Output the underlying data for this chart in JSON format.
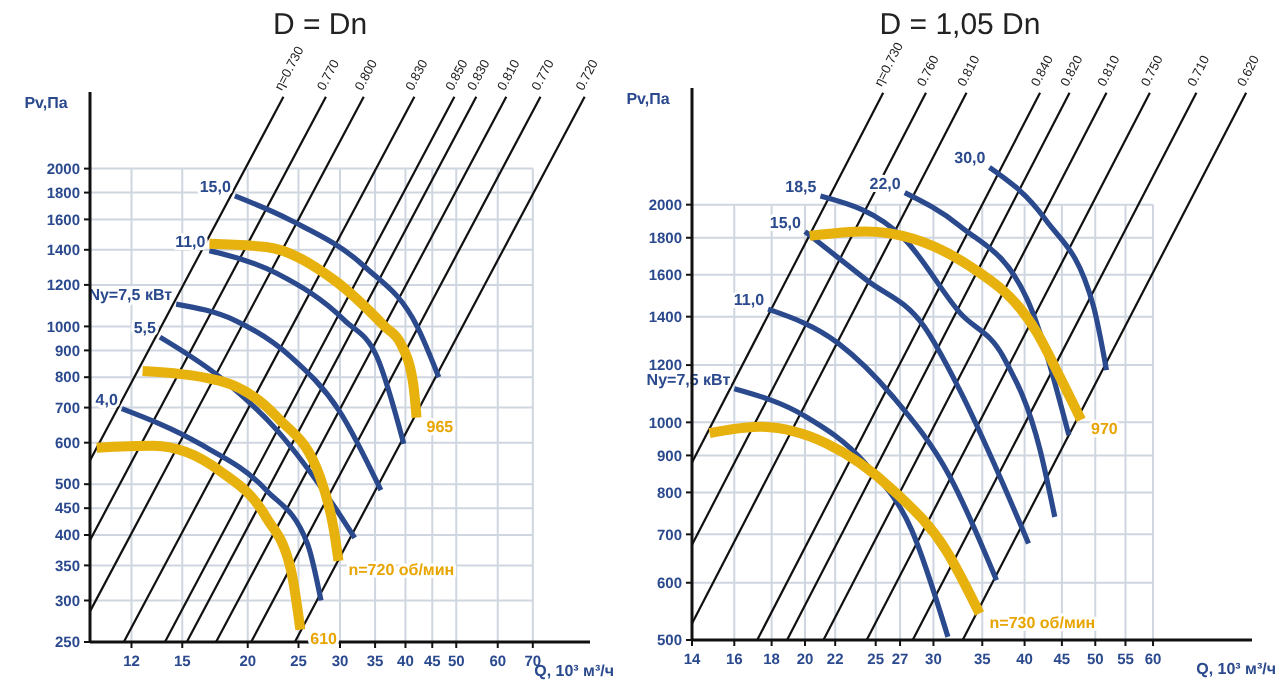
{
  "chart_data": [
    {
      "type": "line",
      "title": "D = Dn",
      "xlabel": "Q, 10³ м³/ч",
      "ylabel": "Pv,Па",
      "log": "xy",
      "grid": true,
      "xlim": [
        10,
        90
      ],
      "ylim": [
        250,
        2800
      ],
      "xticks": [
        12,
        15,
        20,
        25,
        30,
        35,
        40,
        45,
        50,
        60,
        70
      ],
      "yticks": [
        250,
        300,
        350,
        400,
        450,
        500,
        600,
        700,
        800,
        900,
        1000,
        1200,
        1400,
        1600,
        1800,
        2000
      ],
      "series": [
        {
          "name": "η=0.730",
          "color": "#111111",
          "x": [
            10,
            23.4
          ],
          "values": [
            555,
            2743
          ]
        },
        {
          "name": "0.770",
          "color": "#111111",
          "x": [
            10,
            28.2
          ],
          "values": [
            391,
            2743
          ]
        },
        {
          "name": "0.800",
          "color": "#111111",
          "x": [
            10,
            33.3
          ],
          "values": [
            286,
            2743
          ]
        },
        {
          "name": "0.830",
          "color": "#111111",
          "x": [
            11.6,
            41.6
          ],
          "values": [
            250,
            2743
          ]
        },
        {
          "name": "0.850",
          "color": "#111111",
          "x": [
            13.9,
            49.6
          ],
          "values": [
            250,
            2743
          ]
        },
        {
          "name": "0.830",
          "color": "#111111",
          "x": [
            15.3,
            54.6
          ],
          "values": [
            250,
            2743
          ]
        },
        {
          "name": "0.810",
          "color": "#111111",
          "x": [
            17.4,
            62.3
          ],
          "values": [
            250,
            2743
          ]
        },
        {
          "name": "0.770",
          "color": "#111111",
          "x": [
            20.3,
            72.4
          ],
          "values": [
            250,
            2743
          ]
        },
        {
          "name": "0.720",
          "color": "#111111",
          "x": [
            24.6,
            87.9
          ],
          "values": [
            250,
            2743
          ]
        },
        {
          "name": "15,0",
          "color": "#2b4a8e",
          "x": [
            18.9,
            24.2,
            33.5,
            42.1,
            46.3
          ],
          "values": [
            1774,
            1592,
            1298,
            1000,
            800
          ]
        },
        {
          "name": "11,0",
          "color": "#2b4a8e",
          "x": [
            16.9,
            22.8,
            30.6,
            35.3,
            39.7
          ],
          "values": [
            1395,
            1260,
            1027,
            874,
            597
          ]
        },
        {
          "name": "Ny=7,5 кВт",
          "color": "#2b4a8e",
          "x": [
            14.6,
            18.9,
            24.2,
            29.9,
            35.9
          ],
          "values": [
            1103,
            1027,
            874,
            690,
            487
          ]
        },
        {
          "name": "5,5",
          "color": "#2b4a8e",
          "x": [
            13.6,
            17.7,
            22.8,
            29.1,
            32.0
          ],
          "values": [
            954,
            800,
            632,
            457,
            395
          ]
        },
        {
          "name": "4,0",
          "color": "#2b4a8e",
          "x": [
            11.5,
            16.2,
            21.7,
            26.0,
            27.6
          ],
          "values": [
            697,
            597,
            487,
            385,
            300
          ]
        },
        {
          "color": "#e8b20e",
          "x": [
            10.3,
            13.2,
            17.7,
            21.7,
            24.2,
            25.2
          ],
          "values": [
            587,
            592,
            530,
            432,
            342,
            264
          ]
        },
        {
          "color": "#e8b20e",
          "x": [
            12.6,
            17.7,
            22.8,
            27.5,
            29.2,
            29.8
          ],
          "values": [
            822,
            787,
            670,
            515,
            409,
            357
          ]
        },
        {
          "color": "#e8b20e",
          "x": [
            16.9,
            21.7,
            29.3,
            36.5,
            39.2,
            41.4,
            42.0
          ],
          "values": [
            1437,
            1417,
            1224,
            1000,
            926,
            775,
            670
          ]
        }
      ],
      "annotations": [
        {
          "text": "610",
          "x": 25.2,
          "y": 264
        },
        {
          "text": "n=720 об/мин",
          "x": 29.8,
          "y": 357
        },
        {
          "text": "965",
          "x": 42.0,
          "y": 670
        }
      ]
    },
    {
      "type": "line",
      "title": "D = 1,05 Dn",
      "xlabel": "Q, 10³ м³/ч",
      "ylabel": "Pv,Па",
      "log": "xy",
      "grid": true,
      "xlim": [
        14,
        82
      ],
      "ylim": [
        500,
        2900
      ],
      "xticks": [
        14,
        16,
        18,
        20,
        22,
        25,
        27,
        30,
        35,
        40,
        45,
        50,
        55,
        60
      ],
      "yticks": [
        500,
        600,
        700,
        800,
        900,
        1000,
        1200,
        1400,
        1600,
        1800,
        2000
      ],
      "series": [
        {
          "name": "η=0.730",
          "color": "#111111",
          "x": [
            14,
            25.6
          ],
          "values": [
            880,
            2857
          ]
        },
        {
          "name": "0.760",
          "color": "#111111",
          "x": [
            14,
            29.3
          ],
          "values": [
            677,
            2857
          ]
        },
        {
          "name": "0.810",
          "color": "#111111",
          "x": [
            14,
            33.3
          ],
          "values": [
            527,
            2857
          ]
        },
        {
          "name": "0.840",
          "color": "#111111",
          "x": [
            17.2,
            42.0
          ],
          "values": [
            500,
            2857
          ]
        },
        {
          "name": "0.820",
          "color": "#111111",
          "x": [
            18.9,
            46.1
          ],
          "values": [
            500,
            2857
          ]
        },
        {
          "name": "0.810",
          "color": "#111111",
          "x": [
            21.2,
            51.8
          ],
          "values": [
            500,
            2857
          ]
        },
        {
          "name": "0.750",
          "color": "#111111",
          "x": [
            24.3,
            59.4
          ],
          "values": [
            500,
            2857
          ]
        },
        {
          "name": "0.710",
          "color": "#111111",
          "x": [
            28.1,
            68.8
          ],
          "values": [
            500,
            2857
          ]
        },
        {
          "name": "0.620",
          "color": "#111111",
          "x": [
            32.9,
            80.5
          ],
          "values": [
            500,
            2857
          ]
        },
        {
          "name": "30,0",
          "color": "#2b4a8e",
          "x": [
            35.8,
            42.7,
            49.7,
            51.8
          ],
          "values": [
            2253,
            1909,
            1449,
            1181
          ]
        },
        {
          "name": "22,0",
          "color": "#2b4a8e",
          "x": [
            27.4,
            32.6,
            40.3,
            46.0
          ],
          "values": [
            2078,
            1869,
            1482,
            960
          ]
        },
        {
          "name": "18,5",
          "color": "#2b4a8e",
          "x": [
            21.0,
            27.4,
            32.6,
            37.4,
            42.0,
            44.0
          ],
          "values": [
            2056,
            1791,
            1418,
            1232,
            916,
            740
          ]
        },
        {
          "name": "15,0",
          "color": "#2b4a8e",
          "x": [
            20.0,
            24.2,
            29.1,
            32.6,
            37.0,
            40.5
          ],
          "values": [
            1836,
            1578,
            1359,
            1108,
            841,
            680
          ]
        },
        {
          "name": "11,0",
          "color": "#2b4a8e",
          "x": [
            17.8,
            22.2,
            26.4,
            31.6,
            36.6
          ],
          "values": [
            1434,
            1287,
            1085,
            841,
            605
          ]
        },
        {
          "name": "Ny=7,5 кВт",
          "color": "#2b4a8e",
          "x": [
            16.0,
            20.0,
            24.2,
            28.0,
            31.4
          ],
          "values": [
            1113,
            1020,
            877,
            710,
            505
          ]
        },
        {
          "color": "#e8b20e",
          "x": [
            14.8,
            17.3,
            21.4,
            26.4,
            31.2,
            34.7
          ],
          "values": [
            966,
            986,
            935,
            806,
            666,
            544
          ]
        },
        {
          "color": "#e8b20e",
          "x": [
            20.3,
            24.2,
            33.6,
            41.6,
            44.7,
            47.8
          ],
          "values": [
            1811,
            1836,
            1646,
            1330,
            1156,
            1008
          ]
        }
      ],
      "annotations": [
        {
          "text": "n=730 об/мин",
          "x": 34.7,
          "y": 544
        },
        {
          "text": "970",
          "x": 47.8,
          "y": 1008
        }
      ]
    }
  ]
}
